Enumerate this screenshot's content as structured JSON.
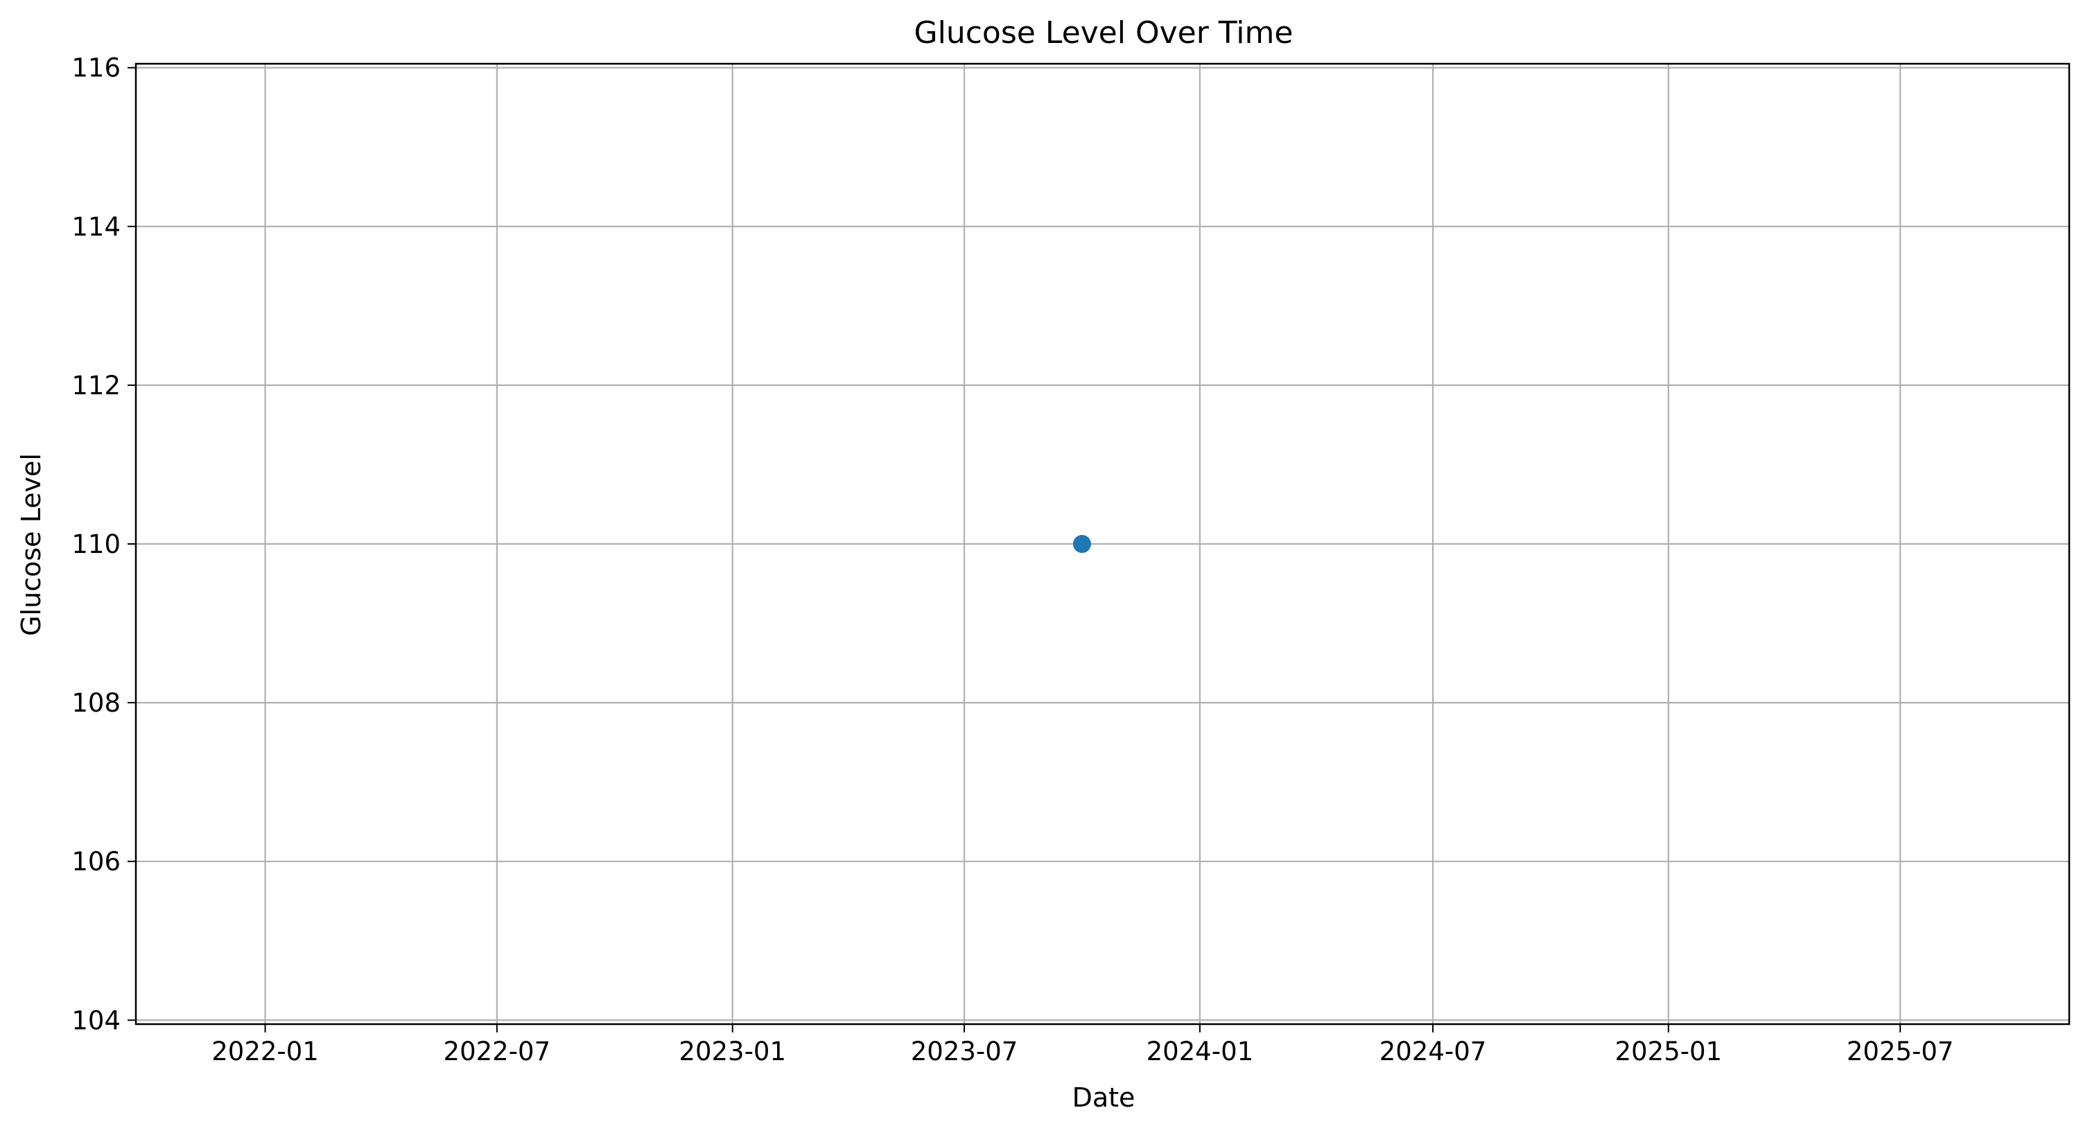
{
  "chart_data": {
    "type": "scatter",
    "title": "Glucose Level Over Time",
    "xlabel": "Date",
    "ylabel": "Glucose Level",
    "x_ticks": [
      "2022-01",
      "2022-07",
      "2023-01",
      "2023-07",
      "2024-01",
      "2024-07",
      "2025-01",
      "2025-07"
    ],
    "y_ticks": [
      104,
      106,
      108,
      110,
      112,
      114,
      116
    ],
    "xlim": [
      "2021-09-22",
      "2025-11-10"
    ],
    "ylim": [
      103.95,
      116.05
    ],
    "grid": true,
    "series": [
      {
        "color": "#1f77b4",
        "points": [
          {
            "x": "2023-10-01",
            "y": 110
          }
        ]
      }
    ]
  }
}
